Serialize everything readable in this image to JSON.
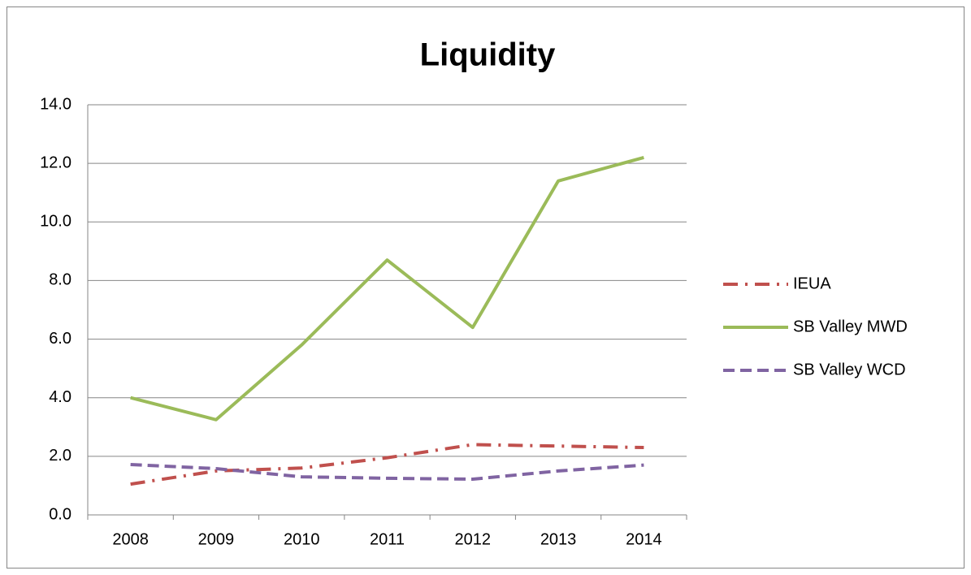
{
  "chart_data": {
    "type": "line",
    "title": "Liquidity",
    "categories": [
      "2008",
      "2009",
      "2010",
      "2011",
      "2012",
      "2013",
      "2014"
    ],
    "series": [
      {
        "name": "IEUA",
        "color": "#c0504d",
        "dash": "dash-dot",
        "values": [
          1.05,
          1.5,
          1.6,
          1.95,
          2.4,
          2.35,
          2.3
        ]
      },
      {
        "name": "SB Valley MWD",
        "color": "#9bbb59",
        "dash": "solid",
        "values": [
          4.0,
          3.25,
          5.8,
          8.7,
          6.4,
          11.4,
          12.2
        ]
      },
      {
        "name": "SB Valley WCD",
        "color": "#8064a2",
        "dash": "dash",
        "values": [
          1.72,
          1.58,
          1.3,
          1.25,
          1.22,
          1.5,
          1.7
        ]
      }
    ],
    "ylim": [
      0,
      14
    ],
    "yticks": [
      {
        "value": 0,
        "label": "0.0"
      },
      {
        "value": 2,
        "label": "2.0"
      },
      {
        "value": 4,
        "label": "4.0"
      },
      {
        "value": 6,
        "label": "6.0"
      },
      {
        "value": 8,
        "label": "8.0"
      },
      {
        "value": 10,
        "label": "10.0"
      },
      {
        "value": 12,
        "label": "12.0"
      },
      {
        "value": 14,
        "label": "14.0"
      }
    ],
    "grid": true,
    "legend": "right"
  }
}
